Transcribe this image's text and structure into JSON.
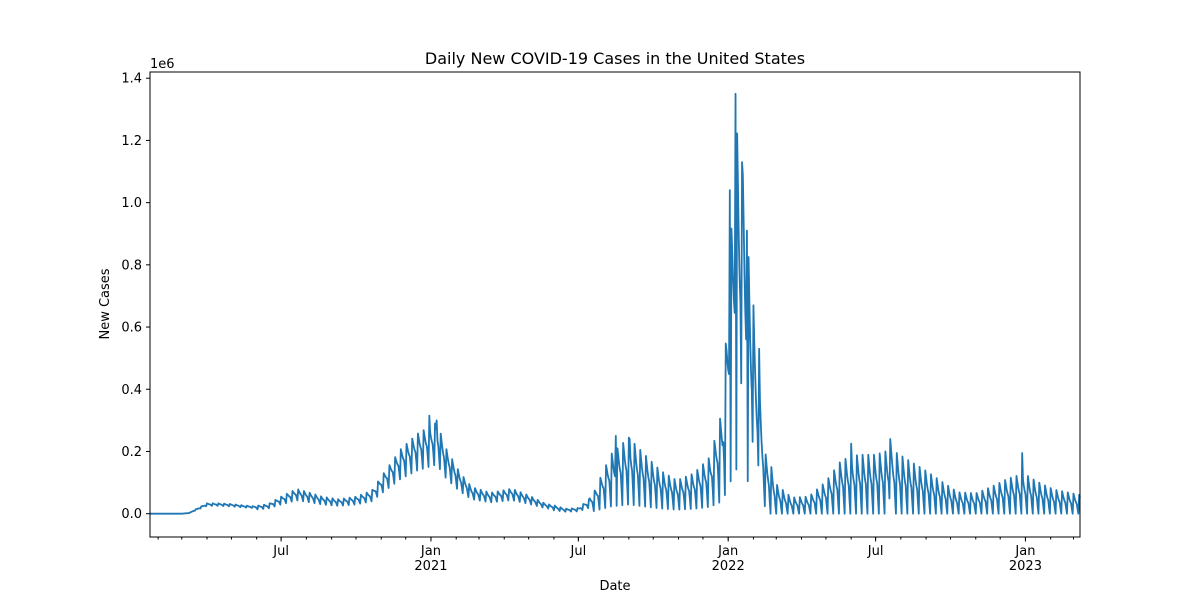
{
  "chart_data": {
    "type": "line",
    "title": "Daily New COVID-19 Cases in the United States",
    "xlabel": "Date",
    "ylabel": "New Cases",
    "y_offset_label": "1e6",
    "y_scale_factor": 1000000,
    "xlim": [
      "2020-01-22",
      "2023-03-09"
    ],
    "ylim": [
      -75000,
      1420000
    ],
    "grid": false,
    "legend": "none",
    "line_color": "#1f77b4",
    "y_ticks": [
      0,
      200000,
      400000,
      600000,
      800000,
      1000000,
      1200000,
      1400000
    ],
    "y_tick_labels": [
      "0.0",
      "0.2",
      "0.4",
      "0.6",
      "0.8",
      "1.0",
      "1.2",
      "1.4"
    ],
    "x_major_ticks": [
      {
        "date": "2020-07-01",
        "label": "Jul",
        "sublabel": ""
      },
      {
        "date": "2021-01-01",
        "label": "Jan",
        "sublabel": "2021"
      },
      {
        "date": "2021-07-01",
        "label": "Jul",
        "sublabel": ""
      },
      {
        "date": "2022-01-01",
        "label": "Jan",
        "sublabel": "2022"
      },
      {
        "date": "2022-07-01",
        "label": "Jul",
        "sublabel": ""
      },
      {
        "date": "2023-01-01",
        "label": "Jan",
        "sublabel": "2023"
      }
    ],
    "series": [
      {
        "baseline_points": [
          [
            "2020-01-22",
            0
          ],
          [
            "2020-03-01",
            0
          ],
          [
            "2020-03-10",
            2000
          ],
          [
            "2020-03-20",
            15000
          ],
          [
            "2020-04-01",
            30000
          ],
          [
            "2020-04-15",
            30000
          ],
          [
            "2020-05-01",
            28000
          ],
          [
            "2020-05-15",
            24000
          ],
          [
            "2020-06-01",
            21000
          ],
          [
            "2020-06-15",
            25000
          ],
          [
            "2020-07-01",
            45000
          ],
          [
            "2020-07-20",
            65000
          ],
          [
            "2020-08-01",
            58000
          ],
          [
            "2020-08-20",
            45000
          ],
          [
            "2020-09-10",
            38000
          ],
          [
            "2020-10-01",
            45000
          ],
          [
            "2020-10-20",
            60000
          ],
          [
            "2020-11-05",
            110000
          ],
          [
            "2020-11-25",
            170000
          ],
          [
            "2020-12-15",
            210000
          ],
          [
            "2021-01-08",
            240000
          ],
          [
            "2021-01-20",
            170000
          ],
          [
            "2021-02-05",
            110000
          ],
          [
            "2021-02-20",
            70000
          ],
          [
            "2021-03-15",
            55000
          ],
          [
            "2021-04-10",
            66000
          ],
          [
            "2021-05-01",
            48000
          ],
          [
            "2021-05-20",
            28000
          ],
          [
            "2021-06-15",
            12000
          ],
          [
            "2021-07-01",
            14000
          ],
          [
            "2021-07-20",
            45000
          ],
          [
            "2021-08-10",
            125000
          ],
          [
            "2021-09-01",
            160000
          ],
          [
            "2021-09-20",
            125000
          ],
          [
            "2021-10-10",
            90000
          ],
          [
            "2021-10-30",
            70000
          ],
          [
            "2021-11-20",
            85000
          ],
          [
            "2021-12-10",
            120000
          ],
          [
            "2021-12-25",
            220000
          ],
          [
            "2022-01-05",
            600000
          ],
          [
            "2022-01-12",
            800000
          ],
          [
            "2022-01-20",
            700000
          ],
          [
            "2022-02-01",
            380000
          ],
          [
            "2022-02-15",
            130000
          ],
          [
            "2022-03-01",
            55000
          ],
          [
            "2022-03-20",
            30000
          ],
          [
            "2022-04-10",
            32000
          ],
          [
            "2022-05-01",
            60000
          ],
          [
            "2022-05-20",
            100000
          ],
          [
            "2022-06-10",
            110000
          ],
          [
            "2022-07-01",
            110000
          ],
          [
            "2022-07-20",
            120000
          ],
          [
            "2022-08-10",
            100000
          ],
          [
            "2022-09-01",
            80000
          ],
          [
            "2022-09-20",
            60000
          ],
          [
            "2022-10-10",
            40000
          ],
          [
            "2022-11-01",
            38000
          ],
          [
            "2022-11-20",
            50000
          ],
          [
            "2022-12-10",
            65000
          ],
          [
            "2022-12-30",
            75000
          ],
          [
            "2023-01-15",
            60000
          ],
          [
            "2023-02-05",
            45000
          ],
          [
            "2023-03-09",
            35000
          ]
        ],
        "spikes": [
          [
            "2020-12-30",
            315000
          ],
          [
            "2021-01-08",
            300000
          ],
          [
            "2021-08-16",
            250000
          ],
          [
            "2021-09-02",
            240000
          ],
          [
            "2022-01-03",
            1040000
          ],
          [
            "2022-01-10",
            1350000
          ],
          [
            "2022-01-18",
            1130000
          ],
          [
            "2022-01-24",
            910000
          ],
          [
            "2022-02-01",
            670000
          ],
          [
            "2022-02-08",
            530000
          ],
          [
            "2022-06-01",
            225000
          ],
          [
            "2022-07-19",
            240000
          ],
          [
            "2022-12-28",
            195000
          ]
        ]
      }
    ]
  }
}
